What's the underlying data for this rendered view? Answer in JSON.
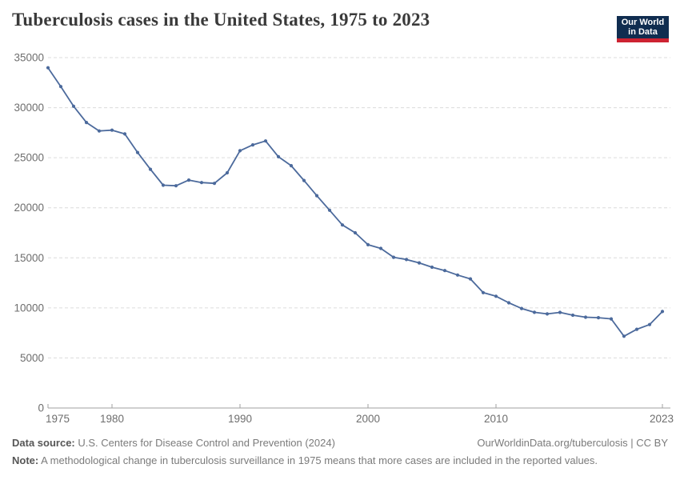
{
  "header": {
    "title": "Tuberculosis cases in the United States, 1975 to 2023",
    "logo": {
      "line1": "Our World",
      "line2": "in Data"
    }
  },
  "chart_data": {
    "type": "line",
    "title": "Tuberculosis cases in the United States, 1975 to 2023",
    "series_name": "United States",
    "x": [
      1975,
      1976,
      1977,
      1978,
      1979,
      1980,
      1981,
      1982,
      1983,
      1984,
      1985,
      1986,
      1987,
      1988,
      1989,
      1990,
      1991,
      1992,
      1993,
      1994,
      1995,
      1996,
      1997,
      1998,
      1999,
      2000,
      2001,
      2002,
      2003,
      2004,
      2005,
      2006,
      2007,
      2008,
      2009,
      2010,
      2011,
      2012,
      2013,
      2014,
      2015,
      2016,
      2017,
      2018,
      2019,
      2020,
      2021,
      2022,
      2023
    ],
    "values": [
      33989,
      32105,
      30145,
      28521,
      27669,
      27749,
      27373,
      25520,
      23846,
      22255,
      22201,
      22768,
      22517,
      22436,
      23495,
      25701,
      26283,
      26673,
      25102,
      24206,
      22726,
      21210,
      19751,
      18286,
      17499,
      16309,
      15945,
      15055,
      14835,
      14499,
      14063,
      13728,
      13283,
      12895,
      11523,
      11161,
      10510,
      9940,
      9561,
      9398,
      9547,
      9272,
      9070,
      9021,
      8904,
      7171,
      7866,
      8332,
      9633
    ],
    "xlabel": "",
    "ylabel": "",
    "ylim": [
      0,
      35000
    ],
    "yticks": [
      0,
      5000,
      10000,
      15000,
      20000,
      25000,
      30000,
      35000
    ],
    "xticks": [
      1975,
      1980,
      1990,
      2000,
      2010,
      2023
    ],
    "grid": true,
    "legend": "none",
    "line_color": "#4C6A9C"
  },
  "colors": {
    "line": "#4C6A9C",
    "grid": "#dcdcdc",
    "axis": "#a0a0a0",
    "tick_text": "#6e6e6e",
    "logo_navy": "#102d50",
    "logo_red": "#cd2332"
  },
  "footer": {
    "source_label": "Data source:",
    "source_text": " U.S. Centers for Disease Control and Prevention (2024)",
    "link_text": "OurWorldinData.org/tuberculosis | CC BY",
    "note_label": "Note:",
    "note_text": " A methodological change in tuberculosis surveillance in 1975 means that more cases are included in the reported values."
  }
}
